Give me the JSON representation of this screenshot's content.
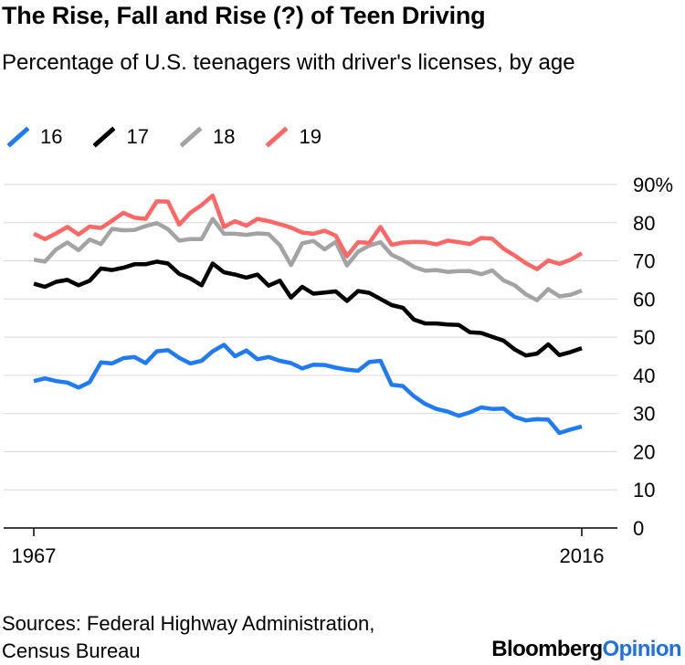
{
  "header": {
    "title": "The Rise, Fall and Rise (?) of Teen Driving",
    "subtitle": "Percentage of U.S. teenagers with driver's licenses, by age"
  },
  "footer": {
    "source_line1": "Sources: Federal Highway Administration,",
    "source_line2": "Census Bureau",
    "brand_part1": "Bloomberg",
    "brand_part2": "Opinion"
  },
  "chart_data": {
    "type": "line",
    "title": "The Rise, Fall and Rise (?) of Teen Driving",
    "subtitle": "Percentage of U.S. teenagers with driver's licenses, by age",
    "xlim": [
      1967,
      2016
    ],
    "ylim": [
      0,
      90
    ],
    "x_tick_labels": [
      "1967",
      "2016"
    ],
    "y_ticks": [
      0,
      10,
      20,
      30,
      40,
      50,
      60,
      70,
      80,
      90
    ],
    "y_tick_labels": [
      "0",
      "10",
      "20",
      "30",
      "40",
      "50",
      "60",
      "70",
      "80",
      "90%"
    ],
    "legend_position": "top-left",
    "grid": true,
    "x": [
      1967,
      1968,
      1969,
      1970,
      1971,
      1972,
      1973,
      1974,
      1975,
      1976,
      1977,
      1978,
      1979,
      1980,
      1981,
      1982,
      1983,
      1984,
      1985,
      1986,
      1987,
      1988,
      1989,
      1990,
      1991,
      1992,
      1993,
      1994,
      1995,
      1996,
      1997,
      1998,
      1999,
      2000,
      2001,
      2002,
      2003,
      2004,
      2005,
      2006,
      2007,
      2008,
      2009,
      2010,
      2011,
      2012,
      2013,
      2014,
      2015,
      2016
    ],
    "series": [
      {
        "name": "16",
        "color": "#1f7bf4",
        "values": [
          38.5,
          39.2,
          38.5,
          38.1,
          36.8,
          38.2,
          43.4,
          43.1,
          44.5,
          44.8,
          43.2,
          46.3,
          46.6,
          44.6,
          43.1,
          43.8,
          46.3,
          48.0,
          45.0,
          46.5,
          44.2,
          44.8,
          43.8,
          43.2,
          41.8,
          42.8,
          42.7,
          42.0,
          41.5,
          41.2,
          43.5,
          43.8,
          37.5,
          37.2,
          34.5,
          32.5,
          31.2,
          30.5,
          29.4,
          30.3,
          31.6,
          31.2,
          31.3,
          29.1,
          28.2,
          28.5,
          28.4,
          24.9,
          25.8,
          26.6
        ]
      },
      {
        "name": "17",
        "color": "#000000",
        "values": [
          64.0,
          63.2,
          64.5,
          65.0,
          63.6,
          64.8,
          68.0,
          67.6,
          68.2,
          69.1,
          69.1,
          69.8,
          69.3,
          66.6,
          65.4,
          63.6,
          69.3,
          67.0,
          66.4,
          65.6,
          66.4,
          63.5,
          64.8,
          60.4,
          63.2,
          61.4,
          61.7,
          62.0,
          59.5,
          62.1,
          61.6,
          60.0,
          58.4,
          57.7,
          54.6,
          53.6,
          53.6,
          53.3,
          53.2,
          51.3,
          51.1,
          50.1,
          49.1,
          46.8,
          45.2,
          45.7,
          48.1,
          45.3,
          46.1,
          47.1
        ]
      },
      {
        "name": "18",
        "color": "#a3a3a3",
        "values": [
          70.3,
          69.8,
          73.0,
          74.8,
          72.8,
          75.6,
          74.4,
          78.4,
          78.0,
          78.1,
          79.1,
          79.9,
          78.3,
          75.3,
          75.7,
          75.7,
          81.0,
          77.1,
          77.1,
          76.8,
          77.2,
          77.0,
          74.1,
          68.9,
          74.6,
          75.2,
          73.0,
          75.0,
          68.8,
          72.4,
          74.0,
          74.9,
          71.6,
          70.2,
          68.4,
          67.4,
          67.6,
          67.1,
          67.3,
          67.3,
          66.5,
          67.5,
          64.9,
          63.6,
          61.2,
          59.7,
          62.6,
          60.7,
          61.1,
          62.2
        ]
      },
      {
        "name": "19",
        "color": "#ff6666",
        "values": [
          77.1,
          75.7,
          77.2,
          78.9,
          76.9,
          79.0,
          78.6,
          80.5,
          82.6,
          81.3,
          81.0,
          85.6,
          85.5,
          79.5,
          82.6,
          84.6,
          87.1,
          78.9,
          80.4,
          79.2,
          81.0,
          80.4,
          79.6,
          78.7,
          77.4,
          77.1,
          77.9,
          76.6,
          71.2,
          74.9,
          74.7,
          78.9,
          74.2,
          74.8,
          75.0,
          74.9,
          74.3,
          75.3,
          74.9,
          74.4,
          76.0,
          75.8,
          73.2,
          71.4,
          69.4,
          67.8,
          70.1,
          69.2,
          70.3,
          72.0
        ]
      }
    ]
  }
}
